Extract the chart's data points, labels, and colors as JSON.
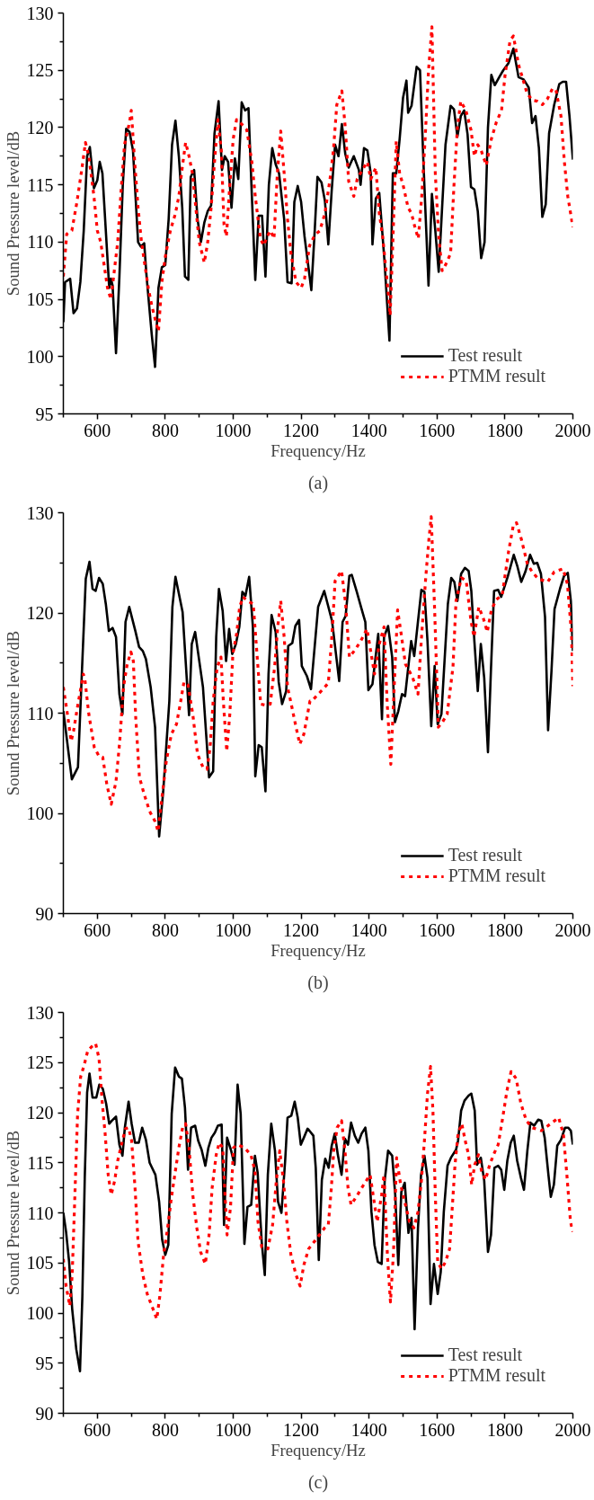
{
  "chart_data": [
    {
      "type": "line",
      "xlabel": "Frequency/Hz",
      "ylabel": "Sound Pressure level/dB",
      "annotations": [
        "(a)"
      ],
      "xlim": [
        500,
        2000
      ],
      "ylim": [
        95,
        130
      ],
      "xticks": [
        {
          "value": 500,
          "label": null
        },
        600,
        {
          "value": 700,
          "label": null
        },
        800,
        {
          "value": 900,
          "label": null
        },
        1000,
        {
          "value": 1100,
          "label": null
        },
        1200,
        {
          "value": 1300,
          "label": null
        },
        1400,
        {
          "value": 1500,
          "label": null
        },
        1600,
        {
          "value": 1700,
          "label": null
        },
        1800,
        {
          "value": 1900,
          "label": null
        },
        2000
      ],
      "yticks": [
        95,
        {
          "value": 97.5,
          "label": null
        },
        100,
        {
          "value": 102.5,
          "label": null
        },
        105,
        {
          "value": 107.5,
          "label": null
        },
        110,
        {
          "value": 112.5,
          "label": null
        },
        115,
        {
          "value": 117.5,
          "label": null
        },
        120,
        {
          "value": 122.5,
          "label": null
        },
        125,
        {
          "value": 127.5,
          "label": null
        },
        130
      ],
      "grid": false,
      "legend": "bottom right",
      "series": [
        {
          "name": "Test result",
          "color": "#000000",
          "line_style": "solid",
          "x": [
            500,
            505,
            520,
            530,
            540,
            550,
            560,
            570,
            578,
            590,
            600,
            607,
            615,
            625,
            635,
            640,
            645,
            655,
            665,
            675,
            685,
            695,
            705,
            720,
            728,
            738,
            745,
            760,
            770,
            780,
            790,
            800,
            810,
            820,
            830,
            840,
            850,
            858,
            868,
            875,
            885,
            895,
            905,
            915,
            925,
            935,
            945,
            957,
            967,
            975,
            985,
            995,
            1005,
            1015,
            1025,
            1035,
            1045,
            1055,
            1065,
            1075,
            1085,
            1095,
            1105,
            1115,
            1125,
            1135,
            1150,
            1160,
            1172,
            1180,
            1190,
            1200,
            1210,
            1225,
            1230,
            1240,
            1248,
            1260,
            1270,
            1280,
            1290,
            1300,
            1310,
            1320,
            1330,
            1340,
            1355,
            1370,
            1375,
            1385,
            1395,
            1405,
            1410,
            1420,
            1430,
            1445,
            1460,
            1470,
            1480,
            1490,
            1500,
            1510,
            1515,
            1525,
            1540,
            1550,
            1560,
            1575,
            1585,
            1595,
            1605,
            1615,
            1625,
            1640,
            1650,
            1660,
            1670,
            1680,
            1690,
            1700,
            1710,
            1720,
            1730,
            1740,
            1750,
            1760,
            1770,
            1785,
            1795,
            1810,
            1825,
            1840,
            1855,
            1870,
            1880,
            1890,
            1900,
            1910,
            1920,
            1930,
            1945,
            1960,
            1970,
            1980,
            1990,
            2000
          ],
          "values": [
            103,
            106.5,
            106.8,
            103.8,
            104.2,
            106.5,
            111,
            117.5,
            118.3,
            114.7,
            115.4,
            117,
            116,
            111,
            106,
            106.8,
            106.2,
            100.3,
            107,
            115,
            119.9,
            119.6,
            118,
            110,
            109.6,
            109.9,
            107,
            102,
            99.1,
            106,
            107.8,
            108,
            112,
            118.5,
            120.6,
            117.5,
            113,
            107,
            106.7,
            115.7,
            116.3,
            112,
            110,
            111.7,
            112.7,
            113.2,
            119.5,
            122.3,
            116.3,
            117.5,
            117,
            113,
            117.3,
            115.5,
            122.2,
            121.5,
            121.7,
            114,
            106.7,
            112.3,
            112.3,
            107,
            115,
            118.2,
            116.8,
            116,
            112,
            106.5,
            106.4,
            113.5,
            114.9,
            113.5,
            110.5,
            107,
            105.8,
            111,
            115.7,
            115.2,
            113.6,
            109.8,
            114.5,
            118.5,
            117.5,
            120.3,
            117.7,
            116.5,
            117.5,
            116.3,
            115,
            118.2,
            118,
            116,
            109.8,
            113.8,
            114.3,
            108.5,
            101.4,
            116,
            116,
            119,
            122.6,
            124.1,
            121.3,
            121.9,
            125.3,
            125,
            117,
            106.2,
            114.2,
            111,
            107.4,
            113,
            118.5,
            121.9,
            121.6,
            119.2,
            121,
            121.5,
            119.4,
            114.8,
            114.6,
            112.7,
            108.6,
            110,
            120,
            124.6,
            123.7,
            124.5,
            125,
            125.6,
            126.9,
            124.4,
            124.2,
            123.5,
            120.4,
            121,
            118.2,
            112.2,
            113.3,
            119.5,
            122,
            123.8,
            124,
            124,
            121,
            117.2
          ]
        },
        {
          "name": "PTMM result",
          "color": "#ff0000",
          "line_style": "dotted",
          "x": [
            500,
            510,
            525,
            540,
            555,
            565,
            575,
            590,
            600,
            610,
            620,
            630,
            640,
            650,
            660,
            670,
            680,
            695,
            700,
            710,
            720,
            730,
            740,
            750,
            760,
            770,
            780,
            790,
            800,
            815,
            830,
            840,
            850,
            860,
            870,
            880,
            890,
            900,
            915,
            925,
            935,
            945,
            955,
            965,
            973,
            980,
            990,
            1000,
            1010,
            1025,
            1040,
            1055,
            1065,
            1080,
            1090,
            1100,
            1110,
            1120,
            1130,
            1140,
            1150,
            1160,
            1170,
            1185,
            1200,
            1210,
            1225,
            1240,
            1255,
            1270,
            1285,
            1295,
            1305,
            1320,
            1330,
            1340,
            1355,
            1365,
            1380,
            1395,
            1405,
            1420,
            1430,
            1440,
            1455,
            1462,
            1470,
            1480,
            1490,
            1500,
            1515,
            1525,
            1535,
            1545,
            1555,
            1565,
            1575,
            1585,
            1595,
            1605,
            1615,
            1625,
            1640,
            1650,
            1660,
            1670,
            1685,
            1700,
            1710,
            1720,
            1730,
            1745,
            1760,
            1775,
            1790,
            1800,
            1815,
            1825,
            1840,
            1850,
            1865,
            1880,
            1895,
            1910,
            1925,
            1940,
            1950,
            1965,
            1975,
            1985,
            2000
          ],
          "values": [
            107,
            110.7,
            111,
            113.5,
            116.5,
            118.7,
            117.5,
            114,
            111,
            110,
            108,
            106,
            105,
            107.5,
            110,
            114.5,
            118.5,
            120.5,
            121.5,
            117,
            113,
            110,
            108,
            106,
            104.5,
            103.3,
            102.2,
            106.5,
            108.7,
            111,
            112.5,
            114,
            116.5,
            118.7,
            117.5,
            116,
            113,
            110,
            108.2,
            110,
            113,
            117,
            120.7,
            118,
            111.5,
            110.5,
            115,
            119,
            120.7,
            120.3,
            119.8,
            117,
            114,
            110.3,
            109.7,
            110.5,
            111,
            110.3,
            116,
            119.7,
            116,
            112,
            109,
            106.5,
            106,
            106.8,
            109.7,
            110.6,
            111,
            112.5,
            115.5,
            118,
            122,
            123.2,
            120,
            115.3,
            114,
            115.5,
            116.3,
            117,
            115.5,
            116.5,
            112.5,
            110.5,
            106,
            103.6,
            110,
            118.8,
            116,
            115,
            113,
            112.5,
            111.3,
            110.3,
            114,
            119,
            125,
            128.8,
            116,
            110.5,
            107.5,
            108,
            109,
            115,
            120,
            122.3,
            121.5,
            119.8,
            117.5,
            118.5,
            118,
            116.7,
            119,
            120.5,
            121.5,
            124.5,
            127.6,
            128,
            125.5,
            124.5,
            123,
            122.4,
            122.3,
            122,
            122.5,
            123.4,
            123.3,
            121,
            117,
            114,
            111.3
          ]
        }
      ]
    },
    {
      "type": "line",
      "xlabel": "Frequency/Hz",
      "ylabel": "Sound Pressure level/dB",
      "annotations": [
        "(b)"
      ],
      "xlim": [
        500,
        2000
      ],
      "ylim": [
        90,
        130
      ],
      "xticks": [
        {
          "value": 500,
          "label": null
        },
        600,
        {
          "value": 700,
          "label": null
        },
        800,
        {
          "value": 900,
          "label": null
        },
        1000,
        {
          "value": 1100,
          "label": null
        },
        1200,
        {
          "value": 1300,
          "label": null
        },
        1400,
        {
          "value": 1500,
          "label": null
        },
        1600,
        {
          "value": 1700,
          "label": null
        },
        1800,
        {
          "value": 1900,
          "label": null
        },
        2000
      ],
      "yticks": [
        90,
        {
          "value": 95,
          "label": null
        },
        100,
        {
          "value": 105,
          "label": null
        },
        110,
        {
          "value": 115,
          "label": null
        },
        120,
        {
          "value": 125,
          "label": null
        },
        130
      ],
      "grid": false,
      "legend": "bottom right",
      "series": [
        {
          "name": "Test result",
          "color": "#000000",
          "line_style": "solid",
          "x": [
            500,
            525,
            543,
            566,
            577,
            586,
            595,
            605,
            616,
            625,
            634,
            645,
            655,
            665,
            674,
            683,
            694,
            712,
            723,
            734,
            743,
            757,
            770,
            782,
            794,
            812,
            821,
            830,
            851,
            870,
            878,
            888,
            911,
            929,
            941,
            950,
            958,
            969,
            979,
            988,
            997,
            1008,
            1018,
            1027,
            1036,
            1047,
            1058,
            1065,
            1075,
            1084,
            1095,
            1104,
            1113,
            1125,
            1134,
            1144,
            1156,
            1162,
            1174,
            1183,
            1194,
            1202,
            1217,
            1229,
            1250,
            1268,
            1291,
            1312,
            1322,
            1331,
            1342,
            1349,
            1363,
            1378,
            1389,
            1398,
            1410,
            1427,
            1438,
            1444,
            1456,
            1468,
            1476,
            1486,
            1497,
            1506,
            1524,
            1533,
            1554,
            1563,
            1572,
            1583,
            1593,
            1602,
            1613,
            1632,
            1642,
            1651,
            1660,
            1671,
            1682,
            1693,
            1701,
            1710,
            1720,
            1729,
            1739,
            1750,
            1759,
            1768,
            1780,
            1789,
            1808,
            1826,
            1837,
            1848,
            1860,
            1874,
            1885,
            1895,
            1906,
            1918,
            1927,
            1937,
            1946,
            1962,
            1974,
            1985,
            1994,
            2000
          ],
          "values": [
            110.2,
            103.4,
            104.6,
            123.4,
            125.1,
            122.4,
            122.2,
            123.5,
            122.9,
            120.9,
            118.2,
            118.5,
            117.6,
            111.9,
            109.9,
            119.1,
            120.6,
            118.2,
            116.6,
            116.2,
            115.4,
            112.6,
            108.6,
            97.7,
            102.2,
            111.2,
            120.6,
            123.6,
            120.1,
            109.8,
            116.9,
            118.1,
            112.6,
            103.6,
            104.2,
            117.6,
            122.4,
            120.2,
            115.2,
            118.4,
            115.9,
            116.9,
            118.6,
            122.1,
            121.7,
            123.6,
            118.6,
            103.7,
            106.8,
            106.6,
            102.2,
            113.9,
            119.8,
            118.1,
            113.1,
            110.9,
            112.2,
            116.7,
            117,
            118.7,
            119.3,
            114.7,
            113.7,
            112.4,
            120.6,
            122.2,
            119.2,
            113.2,
            119.1,
            119.7,
            123.7,
            123.8,
            122.2,
            120.4,
            119.1,
            112.3,
            112.9,
            117.9,
            109.4,
            117.6,
            118.7,
            115.6,
            109.1,
            110.2,
            111.9,
            111.7,
            117.2,
            115.7,
            122.3,
            122.1,
            117.2,
            108.7,
            114.7,
            108.9,
            109.9,
            120.9,
            123.5,
            123.1,
            121.2,
            123.9,
            124.5,
            124.2,
            122.2,
            117.2,
            112.2,
            116.9,
            113.5,
            106.1,
            114.5,
            122.2,
            122.3,
            121.6,
            123.6,
            125.8,
            124.6,
            123.1,
            124.1,
            125.8,
            124.9,
            125,
            123.9,
            119.6,
            108.3,
            114.2,
            120.4,
            122.4,
            123.7,
            124,
            121.2,
            116.2
          ]
        },
        {
          "name": "PTMM result",
          "color": "#ff0000",
          "line_style": "dotted",
          "x": [
            500,
            512,
            523,
            530,
            543,
            559,
            564,
            575,
            591,
            605,
            616,
            628,
            641,
            655,
            666,
            677,
            688,
            699,
            706,
            713,
            724,
            738,
            754,
            770,
            779,
            789,
            803,
            818,
            833,
            844,
            855,
            867,
            881,
            895,
            911,
            923,
            932,
            941,
            953,
            964,
            971,
            981,
            990,
            999,
            1010,
            1019,
            1029,
            1042,
            1059,
            1070,
            1081,
            1095,
            1109,
            1122,
            1131,
            1140,
            1150,
            1160,
            1171,
            1185,
            1196,
            1208,
            1226,
            1231,
            1259,
            1280,
            1291,
            1300,
            1319,
            1331,
            1342,
            1356,
            1374,
            1394,
            1416,
            1430,
            1444,
            1453,
            1464,
            1474,
            1484,
            1495,
            1507,
            1528,
            1544,
            1555,
            1567,
            1576,
            1583,
            1593,
            1604,
            1616,
            1630,
            1647,
            1656,
            1672,
            1686,
            1700,
            1709,
            1723,
            1737,
            1748,
            1760,
            1774,
            1792,
            1811,
            1825,
            1834,
            1848,
            1866,
            1880,
            1898,
            1926,
            1945,
            1971,
            1984,
            1996,
            2000
          ],
          "values": [
            112.6,
            109.9,
            107.2,
            108.2,
            110.9,
            113.9,
            113.2,
            109.9,
            106.6,
            105.7,
            105.6,
            102.9,
            100.9,
            103.2,
            107.2,
            112.6,
            114.9,
            116.1,
            115.2,
            109.6,
            103.6,
            101.9,
            100.2,
            99.2,
            98.2,
            101.2,
            105.2,
            107.9,
            108.9,
            110.9,
            113.1,
            112.8,
            109.9,
            105.9,
            104.6,
            104.4,
            106.6,
            111.2,
            114.6,
            115.6,
            111.2,
            106.2,
            109.9,
            115.9,
            117.9,
            120.6,
            121.6,
            121.2,
            120.9,
            115.9,
            110.9,
            110.8,
            110.9,
            114.6,
            118.6,
            121.2,
            117.6,
            112.6,
            110.9,
            108.6,
            106.9,
            107.9,
            111.2,
            111.2,
            112.2,
            113,
            117.9,
            123.2,
            124.2,
            120.9,
            115.6,
            116.2,
            117.1,
            118.4,
            113.9,
            116.9,
            118.6,
            111.2,
            104.9,
            112.6,
            120.3,
            117.8,
            114.9,
            113.6,
            111.9,
            117.9,
            123.6,
            127.3,
            129.6,
            120.3,
            108.6,
            109.1,
            109.9,
            114.6,
            121.2,
            123.5,
            123.2,
            119.2,
            117.6,
            120.6,
            119.4,
            118.1,
            120.3,
            121.3,
            121.8,
            126.2,
            128.8,
            129,
            127.4,
            124.9,
            124.1,
            123.4,
            123.1,
            124.1,
            124.4,
            122.9,
            117.9,
            112.7
          ]
        }
      ]
    },
    {
      "type": "line",
      "xlabel": "Frequency/Hz",
      "ylabel": "Sound Pressure level/dB",
      "annotations": [
        "(c)"
      ],
      "xlim": [
        500,
        2000
      ],
      "ylim": [
        90,
        130
      ],
      "xticks": [
        {
          "value": 500,
          "label": null
        },
        600,
        {
          "value": 700,
          "label": null
        },
        800,
        {
          "value": 900,
          "label": null
        },
        1000,
        {
          "value": 1100,
          "label": null
        },
        1200,
        {
          "value": 1300,
          "label": null
        },
        1400,
        {
          "value": 1500,
          "label": null
        },
        1600,
        {
          "value": 1700,
          "label": null
        },
        1800,
        {
          "value": 1900,
          "label": null
        },
        2000
      ],
      "yticks": [
        90,
        {
          "value": 92.5,
          "label": null
        },
        95,
        {
          "value": 97.5,
          "label": null
        },
        100,
        {
          "value": 102.5,
          "label": null
        },
        105,
        {
          "value": 107.5,
          "label": null
        },
        110,
        {
          "value": 112.5,
          "label": null
        },
        115,
        {
          "value": 117.5,
          "label": null
        },
        120,
        {
          "value": 122.5,
          "label": null
        },
        125,
        {
          "value": 127.5,
          "label": null
        },
        130
      ],
      "grid": false,
      "legend": "bottom right",
      "series": [
        {
          "name": "Test result",
          "color": "#000000",
          "line_style": "solid",
          "x": [
            500,
            508,
            517,
            526,
            538,
            549,
            556,
            563,
            570,
            577,
            586,
            597,
            606,
            616,
            626,
            635,
            643,
            655,
            665,
            674,
            681,
            692,
            701,
            711,
            722,
            732,
            743,
            754,
            771,
            782,
            791,
            800,
            809,
            819,
            829,
            840,
            849,
            858,
            867,
            876,
            888,
            897,
            907,
            918,
            927,
            936,
            946,
            955,
            966,
            973,
            982,
            994,
            1004,
            1013,
            1022,
            1033,
            1042,
            1053,
            1064,
            1072,
            1084,
            1093,
            1102,
            1112,
            1123,
            1132,
            1142,
            1153,
            1160,
            1171,
            1181,
            1190,
            1199,
            1208,
            1219,
            1222,
            1236,
            1243,
            1252,
            1261,
            1271,
            1281,
            1290,
            1299,
            1308,
            1319,
            1329,
            1338,
            1347,
            1358,
            1368,
            1378,
            1389,
            1398,
            1407,
            1416,
            1426,
            1437,
            1446,
            1456,
            1468,
            1477,
            1486,
            1495,
            1505,
            1516,
            1525,
            1534,
            1544,
            1553,
            1563,
            1572,
            1581,
            1591,
            1602,
            1611,
            1620,
            1631,
            1641,
            1656,
            1662,
            1671,
            1681,
            1693,
            1701,
            1711,
            1718,
            1729,
            1739,
            1750,
            1759,
            1769,
            1780,
            1789,
            1798,
            1807,
            1817,
            1826,
            1836,
            1847,
            1856,
            1866,
            1875,
            1886,
            1898,
            1907,
            1917,
            1928,
            1935,
            1944,
            1954,
            1965,
            1977,
            1986,
            1994,
            2000
          ],
          "values": [
            110,
            108.1,
            105.1,
            100.4,
            96.4,
            94.2,
            101.7,
            113.5,
            122,
            123.9,
            121.5,
            121.5,
            122.8,
            122.4,
            120.9,
            118.9,
            119.2,
            119.6,
            116.8,
            115.7,
            118.5,
            121.1,
            118.9,
            117,
            117,
            118.5,
            117.3,
            115,
            113.8,
            111.1,
            107.3,
            105.8,
            106.8,
            119.9,
            124.5,
            123.6,
            123.4,
            120.5,
            114.3,
            118.5,
            118.7,
            117.2,
            116.3,
            114.7,
            116.5,
            117.5,
            118,
            118.7,
            118.8,
            108.8,
            117.5,
            116.2,
            114.8,
            122.8,
            119.9,
            106.9,
            110.6,
            110.8,
            115.7,
            114,
            107.1,
            103.8,
            113.8,
            118.9,
            116.2,
            111.1,
            110,
            115.2,
            119.5,
            119.7,
            121.1,
            119.5,
            116.8,
            117.5,
            118.4,
            118.3,
            117.7,
            114.5,
            105.3,
            113.3,
            115.4,
            114.5,
            116.7,
            117.9,
            115.8,
            113.8,
            117.4,
            116.8,
            119,
            117.7,
            117,
            117.9,
            118.5,
            116.2,
            110.1,
            106.8,
            105.1,
            104.9,
            113.2,
            116.2,
            115.7,
            111.8,
            104.8,
            112.1,
            113,
            108,
            109.5,
            98.4,
            108.5,
            113.8,
            115.7,
            113.5,
            100.9,
            104.9,
            101.9,
            104.1,
            110.1,
            114.7,
            115.5,
            116.3,
            117.2,
            120.2,
            121.2,
            121.7,
            121.9,
            120.2,
            114.8,
            115.5,
            113.2,
            106.1,
            107.8,
            114.5,
            114.7,
            114.3,
            112.3,
            115.2,
            117,
            117.7,
            115.2,
            113.5,
            112.3,
            116.2,
            119,
            118.7,
            119.3,
            119.2,
            117.5,
            113.8,
            111.6,
            112.8,
            116.7,
            117.3,
            118.5,
            118.5,
            118.2,
            116.8
          ]
        },
        {
          "name": "PTMM result",
          "color": "#ff0000",
          "line_style": "dotted",
          "x": [
            500,
            508,
            519,
            526,
            534,
            542,
            551,
            561,
            572,
            584,
            595,
            605,
            614,
            623,
            632,
            641,
            651,
            660,
            671,
            683,
            692,
            701,
            711,
            720,
            734,
            747,
            764,
            775,
            784,
            795,
            807,
            818,
            829,
            840,
            851,
            860,
            870,
            881,
            893,
            904,
            918,
            929,
            938,
            950,
            959,
            969,
            976,
            982,
            992,
            1001,
            1013,
            1033,
            1052,
            1064,
            1073,
            1084,
            1102,
            1116,
            1127,
            1137,
            1148,
            1158,
            1170,
            1185,
            1197,
            1208,
            1222,
            1245,
            1269,
            1280,
            1289,
            1296,
            1306,
            1319,
            1329,
            1338,
            1347,
            1366,
            1384,
            1403,
            1415,
            1424,
            1437,
            1444,
            1454,
            1463,
            1472,
            1481,
            1493,
            1505,
            1519,
            1532,
            1544,
            1554,
            1563,
            1572,
            1581,
            1588,
            1595,
            1602,
            1613,
            1625,
            1637,
            1646,
            1653,
            1662,
            1673,
            1683,
            1693,
            1702,
            1711,
            1722,
            1731,
            1743,
            1755,
            1769,
            1780,
            1792,
            1806,
            1818,
            1833,
            1847,
            1863,
            1880,
            1907,
            1935,
            1958,
            1972,
            1983,
            1993,
            2000
          ],
          "values": [
            105.4,
            102.7,
            100.7,
            103.8,
            111.8,
            119.9,
            123.6,
            124.7,
            126.2,
            126.6,
            126.9,
            125.4,
            121.2,
            117.9,
            113.8,
            111.8,
            113.2,
            115.2,
            116.8,
            118.4,
            118.5,
            117.2,
            112.5,
            107.1,
            103.8,
            101.9,
            100.4,
            99.4,
            101.7,
            105.8,
            108.5,
            111.5,
            114,
            116.5,
            118.5,
            118.9,
            116.5,
            111.8,
            108.5,
            106.1,
            104.9,
            107.8,
            112.5,
            115.8,
            117,
            116.5,
            111.8,
            107.8,
            110.5,
            116.5,
            116.8,
            116.5,
            115.8,
            114.2,
            109.1,
            106.6,
            106.4,
            108.8,
            113.2,
            116.2,
            113.2,
            109.1,
            105.8,
            103.8,
            102.7,
            104.8,
            106.4,
            107.4,
            108.5,
            108.8,
            112.5,
            116.2,
            118.5,
            119.2,
            116.2,
            112.5,
            110.8,
            111.8,
            112.8,
            113.8,
            111.1,
            109.1,
            111.8,
            113.8,
            105.8,
            101.1,
            106.1,
            115.5,
            112.8,
            111.1,
            109.1,
            108.5,
            110.1,
            113.2,
            117.2,
            121.9,
            124.6,
            120.2,
            111.8,
            105.1,
            104.4,
            105.1,
            106.4,
            111.1,
            114.8,
            117.9,
            118.9,
            117.2,
            115.8,
            112.8,
            114.8,
            115.8,
            114.2,
            113.3,
            114.8,
            116,
            116.8,
            119.2,
            122.2,
            124.1,
            123.4,
            120.9,
            119.2,
            118.5,
            118.2,
            118.9,
            119.5,
            117.9,
            113.5,
            109.1,
            108.1
          ]
        }
      ]
    }
  ]
}
